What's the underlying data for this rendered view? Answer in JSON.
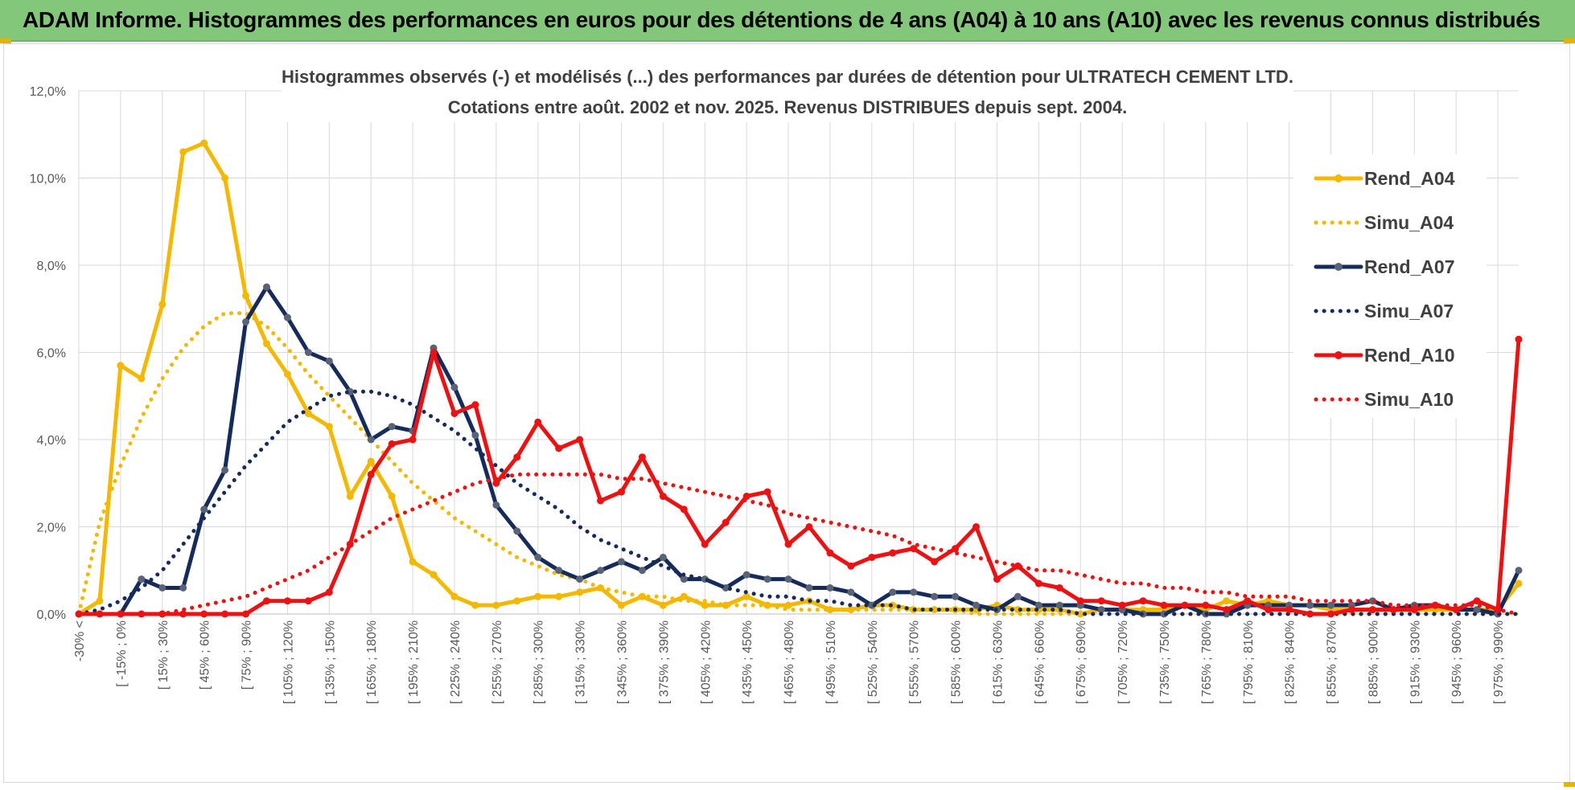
{
  "banner": {
    "title": "ADAM Informe. Histogrammes des performances en euros pour des détentions de 4 ans (A04) à 10 ans (A10) avec les revenus connus distribués"
  },
  "colors": {
    "banner_bg": "#82c77a",
    "yellow": "#f5b800",
    "navy": "#142b5c",
    "red": "#ee1111",
    "grid": "#d9d9d9",
    "axis_text": "#595959"
  },
  "chart_data": {
    "type": "line",
    "title_line1": "Histogrammes observés (-) et modélisés (...) des performances par durées de détention pour ULTRATECH CEMENT LTD.",
    "title_line2": "Cotations entre août. 2002 et nov. 2025. Revenus DISTRIBUES depuis sept. 2004.",
    "ylim": [
      0,
      12
    ],
    "yticks": [
      "0,0%",
      "2,0%",
      "4,0%",
      "6,0%",
      "8,0%",
      "10,0%",
      "12,0%"
    ],
    "xtick_labels": [
      "-30% <",
      "[ -15% ; 0%",
      "[ 15% ; 30%",
      "[ 45% ; 60%",
      "[ 75% ; 90%",
      "[ 105% ; 120%",
      "[ 135% ; 150%",
      "[ 165% ; 180%",
      "[ 195% ; 210%",
      "[ 225% ; 240%",
      "[ 255% ; 270%",
      "[ 285% ; 300%",
      "[ 315% ; 330%",
      "[ 345% ; 360%",
      "[ 375% ; 390%",
      "[ 405% ; 420%",
      "[ 435% ; 450%",
      "[ 465% ; 480%",
      "[ 495% ; 510%",
      "[ 525% ; 540%",
      "[ 555% ; 570%",
      "[ 585% ; 600%",
      "[ 615% ; 630%",
      "[ 645% ; 660%",
      "[ 675% ; 690%",
      "[ 705% ; 720%",
      "[ 735% ; 750%",
      "[ 765% ; 780%",
      "[ 795% ; 810%",
      "[ 825% ; 840%",
      "[ 855% ; 870%",
      "[ 885% ; 900%",
      "[ 915% ; 930%",
      "[ 945% ; 960%",
      "[ 975% ; 990%"
    ],
    "n_points": 70,
    "series": [
      {
        "name": "Rend_A04",
        "style": "solid",
        "color": "#f5b800",
        "values": [
          0.0,
          0.3,
          5.7,
          5.4,
          7.1,
          10.6,
          10.8,
          10.0,
          7.3,
          6.2,
          5.5,
          4.6,
          4.3,
          2.7,
          3.5,
          2.7,
          1.2,
          0.9,
          0.4,
          0.2,
          0.2,
          0.3,
          0.4,
          0.4,
          0.5,
          0.6,
          0.2,
          0.4,
          0.2,
          0.4,
          0.2,
          0.2,
          0.4,
          0.2,
          0.2,
          0.3,
          0.1,
          0.1,
          0.2,
          0.2,
          0.1,
          0.1,
          0.1,
          0.1,
          0.2,
          0.1,
          0.1,
          0.1,
          0.0,
          0.1,
          0.1,
          0.1,
          0.1,
          0.2,
          0.1,
          0.3,
          0.2,
          0.3,
          0.2,
          0.2,
          0.1,
          0.1,
          0.1,
          0.1,
          0.1,
          0.1,
          0.1,
          0.1,
          0.1,
          0.7
        ]
      },
      {
        "name": "Simu_A04",
        "style": "dotted",
        "color": "#f5b800",
        "values": [
          0.0,
          2.1,
          3.4,
          4.5,
          5.4,
          6.1,
          6.6,
          6.9,
          6.9,
          6.6,
          6.1,
          5.5,
          5.0,
          4.5,
          4.0,
          3.5,
          3.0,
          2.6,
          2.2,
          1.9,
          1.6,
          1.3,
          1.1,
          0.9,
          0.8,
          0.6,
          0.5,
          0.4,
          0.4,
          0.3,
          0.3,
          0.2,
          0.2,
          0.2,
          0.1,
          0.1,
          0.1,
          0.1,
          0.1,
          0.1,
          0.1,
          0.1,
          0.1,
          0.0,
          0.0,
          0.0,
          0.0,
          0.0,
          0.0,
          0.0,
          0.0,
          0.0,
          0.0,
          0.0,
          0.0,
          0.0,
          0.0,
          0.0,
          0.0,
          0.0,
          0.0,
          0.0,
          0.0,
          0.0,
          0.0,
          0.0,
          0.0,
          0.0,
          0.0,
          0.0
        ]
      },
      {
        "name": "Rend_A07",
        "style": "solid",
        "color": "#142b5c",
        "values": [
          0.0,
          0.0,
          0.0,
          0.8,
          0.6,
          0.6,
          2.4,
          3.3,
          6.7,
          7.5,
          6.8,
          6.0,
          5.8,
          5.1,
          4.0,
          4.3,
          4.2,
          6.1,
          5.2,
          4.1,
          2.5,
          1.9,
          1.3,
          1.0,
          0.8,
          1.0,
          1.2,
          1.0,
          1.3,
          0.8,
          0.8,
          0.6,
          0.9,
          0.8,
          0.8,
          0.6,
          0.6,
          0.5,
          0.2,
          0.5,
          0.5,
          0.4,
          0.4,
          0.2,
          0.1,
          0.4,
          0.2,
          0.2,
          0.2,
          0.1,
          0.1,
          0.0,
          0.0,
          0.2,
          0.0,
          0.0,
          0.2,
          0.2,
          0.2,
          0.2,
          0.2,
          0.2,
          0.3,
          0.1,
          0.2,
          0.2,
          0.1,
          0.1,
          0.0,
          1.0
        ]
      },
      {
        "name": "Simu_A07",
        "style": "dotted",
        "color": "#142b5c",
        "values": [
          0.0,
          0.1,
          0.3,
          0.6,
          1.0,
          1.6,
          2.2,
          2.8,
          3.4,
          3.9,
          4.4,
          4.7,
          5.0,
          5.1,
          5.1,
          5.0,
          4.8,
          4.5,
          4.2,
          3.8,
          3.4,
          3.0,
          2.7,
          2.4,
          2.0,
          1.7,
          1.5,
          1.3,
          1.1,
          0.9,
          0.8,
          0.6,
          0.5,
          0.4,
          0.4,
          0.3,
          0.3,
          0.2,
          0.2,
          0.2,
          0.1,
          0.1,
          0.1,
          0.1,
          0.1,
          0.1,
          0.1,
          0.1,
          0.0,
          0.0,
          0.0,
          0.0,
          0.0,
          0.0,
          0.0,
          0.0,
          0.0,
          0.0,
          0.0,
          0.0,
          0.0,
          0.0,
          0.0,
          0.0,
          0.0,
          0.0,
          0.0,
          0.0,
          0.0,
          0.0
        ]
      },
      {
        "name": "Rend_A10",
        "style": "solid",
        "color": "#ee1111",
        "values": [
          0.0,
          0.0,
          0.0,
          0.0,
          0.0,
          0.0,
          0.0,
          0.0,
          0.0,
          0.3,
          0.3,
          0.3,
          0.5,
          1.6,
          3.2,
          3.9,
          4.0,
          6.0,
          4.6,
          4.8,
          3.0,
          3.6,
          4.4,
          3.8,
          4.0,
          2.6,
          2.8,
          3.6,
          2.7,
          2.4,
          1.6,
          2.1,
          2.7,
          2.8,
          1.6,
          2.0,
          1.4,
          1.1,
          1.3,
          1.4,
          1.5,
          1.2,
          1.5,
          2.0,
          0.8,
          1.1,
          0.7,
          0.6,
          0.3,
          0.3,
          0.2,
          0.3,
          0.2,
          0.2,
          0.2,
          0.1,
          0.3,
          0.1,
          0.1,
          0.0,
          0.0,
          0.1,
          0.1,
          0.1,
          0.1,
          0.2,
          0.1,
          0.3,
          0.1,
          6.3
        ]
      },
      {
        "name": "Simu_A10",
        "style": "dotted",
        "color": "#ee1111",
        "values": [
          0.0,
          0.0,
          0.0,
          0.0,
          0.0,
          0.1,
          0.2,
          0.3,
          0.4,
          0.6,
          0.8,
          1.0,
          1.3,
          1.6,
          1.9,
          2.2,
          2.4,
          2.6,
          2.8,
          3.0,
          3.1,
          3.2,
          3.2,
          3.2,
          3.2,
          3.2,
          3.1,
          3.1,
          3.0,
          2.9,
          2.8,
          2.7,
          2.6,
          2.5,
          2.3,
          2.2,
          2.1,
          2.0,
          1.9,
          1.8,
          1.6,
          1.5,
          1.4,
          1.3,
          1.2,
          1.1,
          1.0,
          1.0,
          0.9,
          0.8,
          0.7,
          0.7,
          0.6,
          0.6,
          0.5,
          0.5,
          0.4,
          0.4,
          0.4,
          0.3,
          0.3,
          0.3,
          0.3,
          0.2,
          0.2,
          0.2,
          0.2,
          0.2,
          0.1,
          0.0
        ]
      }
    ],
    "legend": [
      "Rend_A04",
      "Simu_A04",
      "Rend_A07",
      "Simu_A07",
      "Rend_A10",
      "Simu_A10"
    ],
    "legend_position": "top-right"
  }
}
